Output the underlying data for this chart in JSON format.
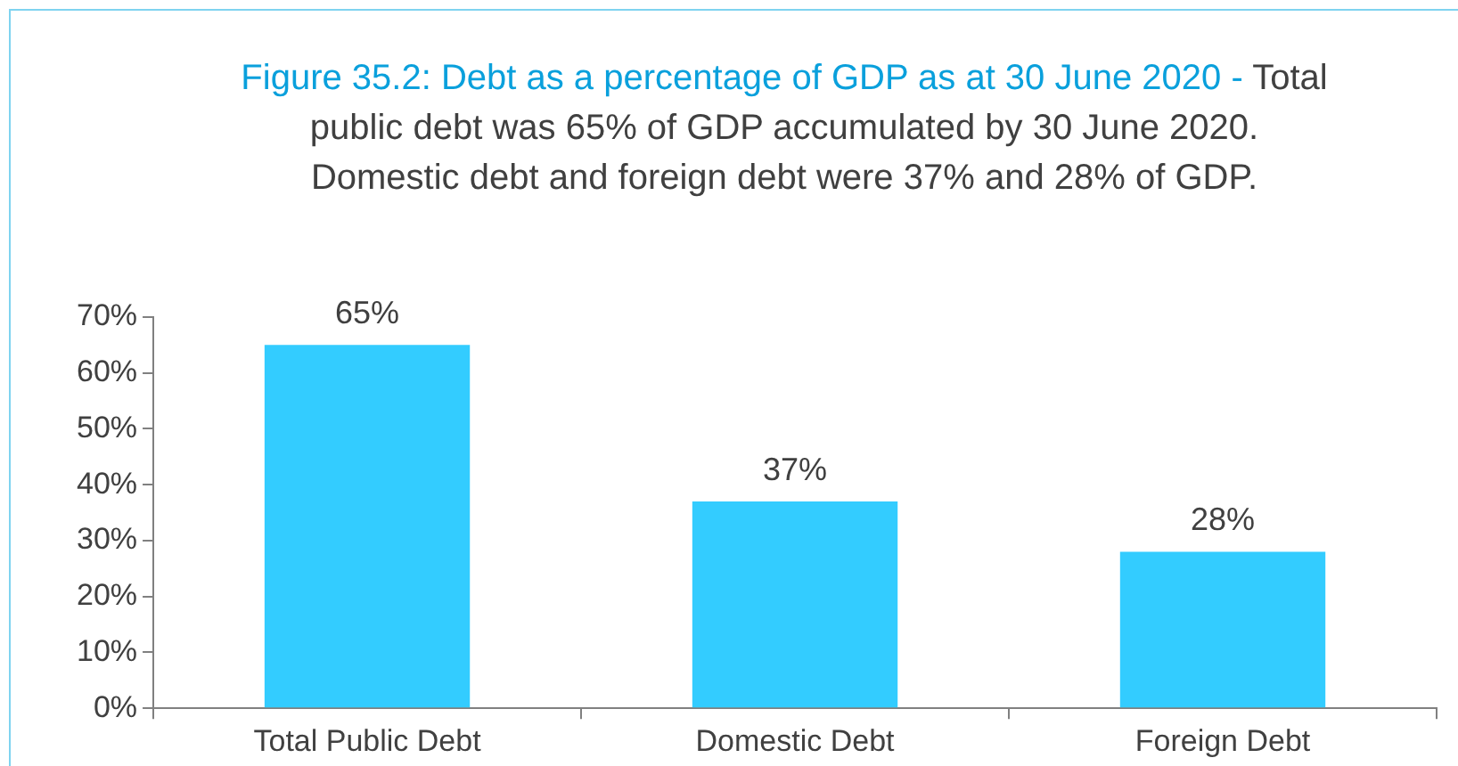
{
  "chart_data": {
    "type": "bar",
    "title": "Figure 35.2: Debt as a percentage of GDP as at 30 June 2020 -",
    "subtitle": "Total public debt was 65% of GDP accumulated by 30 June 2020. Domestic debt and foreign debt were 37% and 28% of GDP.",
    "categories": [
      "Total Public Debt",
      "Domestic Debt",
      "Foreign Debt"
    ],
    "values": [
      65,
      37,
      28
    ],
    "value_labels": [
      "65%",
      "37%",
      "28%"
    ],
    "color": "#33ccff",
    "ylim": [
      0,
      70
    ],
    "yticks": [
      {
        "value": 0,
        "label": "0%"
      },
      {
        "value": 10,
        "label": "10%"
      },
      {
        "value": 20,
        "label": "20%"
      },
      {
        "value": 30,
        "label": "30%"
      },
      {
        "value": 40,
        "label": "40%"
      },
      {
        "value": 50,
        "label": "50%"
      },
      {
        "value": 60,
        "label": "60%"
      },
      {
        "value": 70,
        "label": "70%"
      }
    ],
    "grid": false,
    "legend": false
  }
}
